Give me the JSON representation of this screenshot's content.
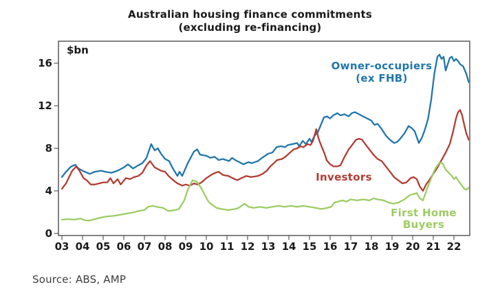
{
  "title": {
    "line1": "Australian housing finance commitments",
    "line2": "(excluding re-financing)"
  },
  "source": "Source: ABS, AMP",
  "chart_data": {
    "type": "line",
    "title": "Australian housing finance commitments (excluding re-financing)",
    "unit_label": "$bn",
    "xlabel": "",
    "ylabel": "$bn",
    "ylim": [
      0,
      17.8
    ],
    "x_range_years": [
      2003,
      2022.75
    ],
    "grid": false,
    "legend_position": "inline-annotations",
    "axis_color": "#595959",
    "text_color": "#1a1a1a",
    "y_ticks": [
      16,
      12,
      8,
      4,
      0
    ],
    "x_ticks": [
      "03",
      "04",
      "05",
      "06",
      "07",
      "08",
      "09",
      "10",
      "11",
      "12",
      "13",
      "14",
      "15",
      "16",
      "17",
      "18",
      "19",
      "20",
      "21",
      "22"
    ],
    "series": [
      {
        "name": "Owner-occupiers (ex FHB)",
        "label_lines": [
          "Owner-occupiers",
          "(ex FHB)"
        ],
        "color": "#1f76ab",
        "points": [
          [
            3.0,
            5.3
          ],
          [
            3.2,
            5.8
          ],
          [
            3.45,
            6.3
          ],
          [
            3.65,
            6.45
          ],
          [
            3.8,
            6.1
          ],
          [
            4.1,
            5.8
          ],
          [
            4.35,
            5.6
          ],
          [
            4.6,
            5.8
          ],
          [
            4.9,
            5.9
          ],
          [
            5.1,
            5.8
          ],
          [
            5.4,
            5.7
          ],
          [
            5.7,
            5.9
          ],
          [
            6.0,
            6.2
          ],
          [
            6.2,
            6.5
          ],
          [
            6.45,
            6.1
          ],
          [
            6.7,
            6.4
          ],
          [
            6.9,
            6.6
          ],
          [
            7.1,
            7.1
          ],
          [
            7.33,
            8.4
          ],
          [
            7.5,
            7.8
          ],
          [
            7.65,
            8.0
          ],
          [
            7.8,
            7.5
          ],
          [
            8.0,
            7.0
          ],
          [
            8.2,
            6.8
          ],
          [
            8.35,
            6.2
          ],
          [
            8.6,
            5.4
          ],
          [
            8.7,
            5.8
          ],
          [
            8.83,
            5.4
          ],
          [
            9.1,
            6.6
          ],
          [
            9.4,
            7.7
          ],
          [
            9.56,
            7.9
          ],
          [
            9.7,
            7.4
          ],
          [
            10.0,
            7.3
          ],
          [
            10.2,
            7.1
          ],
          [
            10.4,
            7.2
          ],
          [
            10.6,
            6.9
          ],
          [
            10.8,
            7.0
          ],
          [
            11.1,
            6.8
          ],
          [
            11.25,
            7.1
          ],
          [
            11.4,
            6.9
          ],
          [
            11.6,
            6.7
          ],
          [
            11.8,
            6.5
          ],
          [
            12.05,
            6.7
          ],
          [
            12.2,
            6.6
          ],
          [
            12.5,
            6.8
          ],
          [
            12.7,
            7.1
          ],
          [
            13.0,
            7.5
          ],
          [
            13.2,
            7.6
          ],
          [
            13.4,
            8.1
          ],
          [
            13.6,
            8.2
          ],
          [
            13.8,
            8.1
          ],
          [
            13.95,
            8.3
          ],
          [
            14.2,
            8.4
          ],
          [
            14.4,
            8.5
          ],
          [
            14.5,
            8.2
          ],
          [
            14.67,
            8.7
          ],
          [
            14.83,
            8.4
          ],
          [
            15.0,
            8.9
          ],
          [
            15.1,
            8.6
          ],
          [
            15.25,
            9.2
          ],
          [
            15.4,
            9.5
          ],
          [
            15.55,
            10.2
          ],
          [
            15.7,
            10.9
          ],
          [
            15.85,
            11.0
          ],
          [
            16.0,
            10.8
          ],
          [
            16.15,
            11.1
          ],
          [
            16.35,
            11.3
          ],
          [
            16.5,
            11.1
          ],
          [
            16.7,
            11.2
          ],
          [
            16.9,
            11.0
          ],
          [
            17.05,
            11.3
          ],
          [
            17.2,
            11.4
          ],
          [
            17.4,
            11.2
          ],
          [
            17.6,
            11.0
          ],
          [
            17.8,
            10.8
          ],
          [
            18.0,
            10.6
          ],
          [
            18.15,
            10.2
          ],
          [
            18.3,
            10.3
          ],
          [
            18.5,
            9.8
          ],
          [
            18.7,
            9.2
          ],
          [
            18.9,
            8.8
          ],
          [
            19.1,
            8.5
          ],
          [
            19.25,
            8.6
          ],
          [
            19.4,
            8.9
          ],
          [
            19.6,
            9.4
          ],
          [
            19.8,
            10.1
          ],
          [
            19.95,
            9.9
          ],
          [
            20.1,
            9.6
          ],
          [
            20.3,
            8.5
          ],
          [
            20.45,
            9.0
          ],
          [
            20.6,
            9.8
          ],
          [
            20.75,
            10.8
          ],
          [
            20.9,
            12.6
          ],
          [
            21.05,
            15.0
          ],
          [
            21.2,
            16.6
          ],
          [
            21.3,
            16.8
          ],
          [
            21.4,
            16.4
          ],
          [
            21.5,
            16.6
          ],
          [
            21.6,
            15.3
          ],
          [
            21.7,
            15.9
          ],
          [
            21.8,
            16.5
          ],
          [
            21.9,
            16.6
          ],
          [
            22.0,
            16.2
          ],
          [
            22.1,
            16.4
          ],
          [
            22.2,
            16.2
          ],
          [
            22.3,
            15.9
          ],
          [
            22.45,
            15.7
          ],
          [
            22.6,
            15.0
          ],
          [
            22.72,
            14.2
          ]
        ]
      },
      {
        "name": "Investors",
        "label_lines": [
          "Investors"
        ],
        "color": "#b23b32",
        "points": [
          [
            3.0,
            4.2
          ],
          [
            3.2,
            4.7
          ],
          [
            3.5,
            5.9
          ],
          [
            3.7,
            6.3
          ],
          [
            3.85,
            5.9
          ],
          [
            4.05,
            5.2
          ],
          [
            4.2,
            5.0
          ],
          [
            4.4,
            4.6
          ],
          [
            4.6,
            4.6
          ],
          [
            4.8,
            4.7
          ],
          [
            5.0,
            4.8
          ],
          [
            5.2,
            4.8
          ],
          [
            5.35,
            5.2
          ],
          [
            5.5,
            4.7
          ],
          [
            5.7,
            5.1
          ],
          [
            5.85,
            4.6
          ],
          [
            6.1,
            5.2
          ],
          [
            6.3,
            5.1
          ],
          [
            6.5,
            5.3
          ],
          [
            6.7,
            5.4
          ],
          [
            6.9,
            5.7
          ],
          [
            7.1,
            6.4
          ],
          [
            7.27,
            6.8
          ],
          [
            7.5,
            6.2
          ],
          [
            7.6,
            6.1
          ],
          [
            7.8,
            5.9
          ],
          [
            8.0,
            5.8
          ],
          [
            8.17,
            5.4
          ],
          [
            8.4,
            5.0
          ],
          [
            8.6,
            4.7
          ],
          [
            8.83,
            4.5
          ],
          [
            9.0,
            4.6
          ],
          [
            9.2,
            4.5
          ],
          [
            9.4,
            4.7
          ],
          [
            9.57,
            4.6
          ],
          [
            9.77,
            4.8
          ],
          [
            10.0,
            5.2
          ],
          [
            10.23,
            5.5
          ],
          [
            10.43,
            5.7
          ],
          [
            10.6,
            5.8
          ],
          [
            10.8,
            5.5
          ],
          [
            11.07,
            5.4
          ],
          [
            11.27,
            5.2
          ],
          [
            11.5,
            5.0
          ],
          [
            11.7,
            5.2
          ],
          [
            11.93,
            5.4
          ],
          [
            12.17,
            5.3
          ],
          [
            12.5,
            5.4
          ],
          [
            12.73,
            5.6
          ],
          [
            12.93,
            5.9
          ],
          [
            13.1,
            6.3
          ],
          [
            13.27,
            6.6
          ],
          [
            13.43,
            6.9
          ],
          [
            13.67,
            7.0
          ],
          [
            13.83,
            7.2
          ],
          [
            14.0,
            7.5
          ],
          [
            14.23,
            7.9
          ],
          [
            14.4,
            8.0
          ],
          [
            14.57,
            8.2
          ],
          [
            14.7,
            8.1
          ],
          [
            14.9,
            8.4
          ],
          [
            15.05,
            8.3
          ],
          [
            15.17,
            8.7
          ],
          [
            15.33,
            9.8
          ],
          [
            15.43,
            9.0
          ],
          [
            15.5,
            8.6
          ],
          [
            15.6,
            8.1
          ],
          [
            15.73,
            7.5
          ],
          [
            15.83,
            6.9
          ],
          [
            16.0,
            6.5
          ],
          [
            16.17,
            6.3
          ],
          [
            16.33,
            6.3
          ],
          [
            16.5,
            6.4
          ],
          [
            16.7,
            7.2
          ],
          [
            16.9,
            7.9
          ],
          [
            17.1,
            8.4
          ],
          [
            17.25,
            8.8
          ],
          [
            17.4,
            8.9
          ],
          [
            17.55,
            8.8
          ],
          [
            17.7,
            8.4
          ],
          [
            17.9,
            7.9
          ],
          [
            18.1,
            7.4
          ],
          [
            18.3,
            7.0
          ],
          [
            18.5,
            6.8
          ],
          [
            18.7,
            6.3
          ],
          [
            18.9,
            5.8
          ],
          [
            19.1,
            5.3
          ],
          [
            19.3,
            5.0
          ],
          [
            19.5,
            4.7
          ],
          [
            19.7,
            4.8
          ],
          [
            19.9,
            5.2
          ],
          [
            20.05,
            5.3
          ],
          [
            20.2,
            5.1
          ],
          [
            20.35,
            4.4
          ],
          [
            20.5,
            4.0
          ],
          [
            20.65,
            4.6
          ],
          [
            20.8,
            5.0
          ],
          [
            21.0,
            5.6
          ],
          [
            21.2,
            6.2
          ],
          [
            21.4,
            6.9
          ],
          [
            21.6,
            7.6
          ],
          [
            21.8,
            8.4
          ],
          [
            21.95,
            9.5
          ],
          [
            22.1,
            10.8
          ],
          [
            22.2,
            11.4
          ],
          [
            22.3,
            11.6
          ],
          [
            22.4,
            11.1
          ],
          [
            22.5,
            10.2
          ],
          [
            22.6,
            9.4
          ],
          [
            22.72,
            8.8
          ]
        ]
      },
      {
        "name": "First Home Buyers",
        "label_lines": [
          "First Home",
          "Buyers"
        ],
        "color": "#9ccc62",
        "points": [
          [
            3.0,
            1.3
          ],
          [
            3.3,
            1.35
          ],
          [
            3.6,
            1.3
          ],
          [
            3.9,
            1.4
          ],
          [
            4.1,
            1.25
          ],
          [
            4.3,
            1.2
          ],
          [
            4.6,
            1.35
          ],
          [
            4.9,
            1.5
          ],
          [
            5.2,
            1.6
          ],
          [
            5.5,
            1.65
          ],
          [
            5.8,
            1.75
          ],
          [
            6.1,
            1.85
          ],
          [
            6.4,
            1.95
          ],
          [
            6.7,
            2.1
          ],
          [
            7.0,
            2.2
          ],
          [
            7.17,
            2.5
          ],
          [
            7.4,
            2.6
          ],
          [
            7.6,
            2.5
          ],
          [
            7.9,
            2.4
          ],
          [
            8.17,
            2.1
          ],
          [
            8.5,
            2.2
          ],
          [
            8.67,
            2.3
          ],
          [
            8.93,
            3.1
          ],
          [
            9.1,
            4.1
          ],
          [
            9.33,
            5.0
          ],
          [
            9.5,
            4.9
          ],
          [
            9.6,
            4.7
          ],
          [
            9.77,
            4.2
          ],
          [
            9.93,
            3.6
          ],
          [
            10.1,
            3.0
          ],
          [
            10.27,
            2.7
          ],
          [
            10.5,
            2.4
          ],
          [
            10.73,
            2.3
          ],
          [
            11.07,
            2.2
          ],
          [
            11.4,
            2.3
          ],
          [
            11.57,
            2.4
          ],
          [
            11.85,
            2.8
          ],
          [
            12.05,
            2.5
          ],
          [
            12.3,
            2.4
          ],
          [
            12.6,
            2.5
          ],
          [
            12.9,
            2.4
          ],
          [
            13.2,
            2.5
          ],
          [
            13.5,
            2.6
          ],
          [
            13.8,
            2.5
          ],
          [
            14.1,
            2.6
          ],
          [
            14.4,
            2.5
          ],
          [
            14.7,
            2.6
          ],
          [
            15.0,
            2.5
          ],
          [
            15.3,
            2.4
          ],
          [
            15.6,
            2.3
          ],
          [
            15.85,
            2.4
          ],
          [
            16.05,
            2.5
          ],
          [
            16.2,
            2.9
          ],
          [
            16.4,
            3.0
          ],
          [
            16.6,
            3.1
          ],
          [
            16.8,
            3.0
          ],
          [
            17.0,
            3.2
          ],
          [
            17.3,
            3.1
          ],
          [
            17.6,
            3.2
          ],
          [
            17.9,
            3.1
          ],
          [
            18.1,
            3.3
          ],
          [
            18.3,
            3.2
          ],
          [
            18.6,
            3.1
          ],
          [
            18.85,
            2.9
          ],
          [
            19.05,
            2.8
          ],
          [
            19.3,
            2.9
          ],
          [
            19.6,
            3.2
          ],
          [
            19.85,
            3.6
          ],
          [
            20.05,
            3.7
          ],
          [
            20.2,
            3.8
          ],
          [
            20.35,
            3.3
          ],
          [
            20.5,
            3.1
          ],
          [
            20.7,
            4.2
          ],
          [
            20.9,
            5.2
          ],
          [
            21.1,
            6.1
          ],
          [
            21.3,
            6.65
          ],
          [
            21.45,
            6.6
          ],
          [
            21.6,
            6.0
          ],
          [
            21.75,
            5.7
          ],
          [
            21.9,
            5.4
          ],
          [
            22.0,
            5.1
          ],
          [
            22.1,
            5.3
          ],
          [
            22.2,
            5.0
          ],
          [
            22.35,
            4.6
          ],
          [
            22.5,
            4.2
          ],
          [
            22.6,
            4.1
          ],
          [
            22.72,
            4.3
          ]
        ]
      }
    ]
  }
}
